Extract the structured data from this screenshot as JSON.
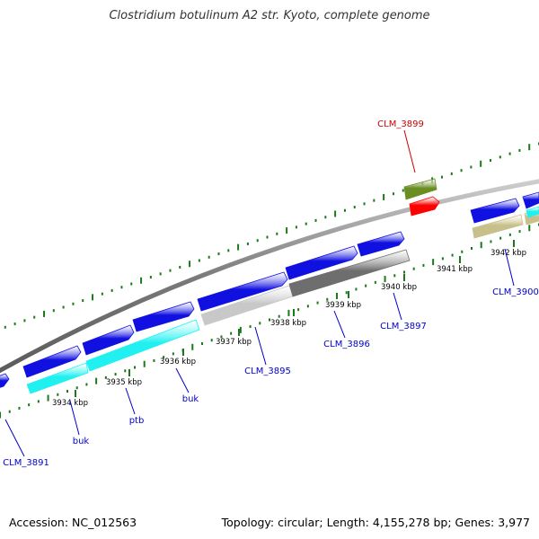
{
  "title": "Clostridium botulinum A2 str. Kyoto, complete genome",
  "footer": {
    "accession": "Accession: NC_012563",
    "stats": "Topology: circular; Length: 4,155,278 bp; Genes: 3,977"
  },
  "colors": {
    "backbone": "#808080",
    "tick": "#1a7a1a",
    "label_blue": "#0000cc",
    "label_red": "#cc0000",
    "feature_blue": "#1010e0",
    "feature_cyan": "#20f0f0",
    "feature_lightgray": "#c8c8c8",
    "feature_darkgray": "#6e6e6e",
    "feature_olive": "#6b8e23",
    "feature_red": "#ff0000",
    "feature_khaki": "#c8c08a"
  },
  "scale_ticks": [
    {
      "label": "3934 kbp"
    },
    {
      "label": "3935 kbp"
    },
    {
      "label": "3936 kbp"
    },
    {
      "label": "3937 kbp"
    },
    {
      "label": "3938 kbp"
    },
    {
      "label": "3939 kbp"
    },
    {
      "label": "3940 kbp"
    },
    {
      "label": "3941 kbp"
    },
    {
      "label": "3942 kbp"
    }
  ],
  "gene_labels": [
    {
      "text": "CLM_3891",
      "color": "blue"
    },
    {
      "text": "buk",
      "color": "blue"
    },
    {
      "text": "ptb",
      "color": "blue"
    },
    {
      "text": "buk",
      "color": "blue"
    },
    {
      "text": "CLM_3895",
      "color": "blue"
    },
    {
      "text": "CLM_3896",
      "color": "blue"
    },
    {
      "text": "CLM_3897",
      "color": "blue"
    },
    {
      "text": "CLM_3899",
      "color": "red"
    },
    {
      "text": "CLM_3900",
      "color": "blue"
    }
  ]
}
